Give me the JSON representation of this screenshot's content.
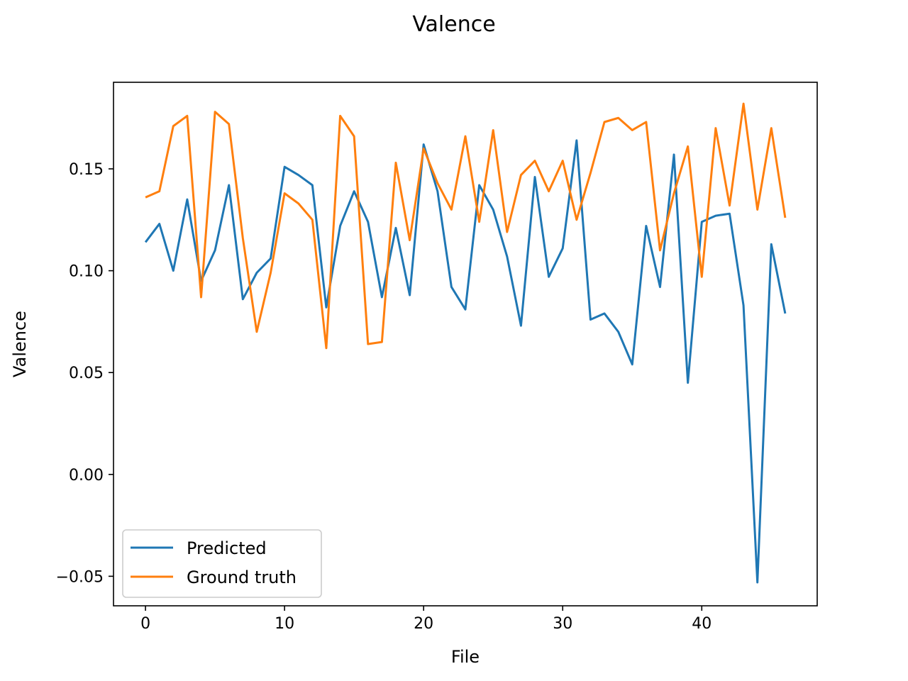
{
  "chart_data": {
    "type": "line",
    "title": "Valence",
    "xlabel": "File",
    "ylabel": "Valence",
    "xlim": [
      -2.3,
      48.3
    ],
    "ylim": [
      -0.0645,
      0.1925
    ],
    "xticks": [
      0,
      10,
      20,
      30,
      40
    ],
    "xtick_labels": [
      "0",
      "10",
      "20",
      "30",
      "40"
    ],
    "yticks": [
      -0.05,
      0.0,
      0.05,
      0.1,
      0.15
    ],
    "ytick_labels": [
      "−0.05",
      "0.00",
      "0.05",
      "0.10",
      "0.15"
    ],
    "grid": false,
    "legend_position": "lower-left",
    "x": [
      0,
      1,
      2,
      3,
      4,
      5,
      6,
      7,
      8,
      9,
      10,
      11,
      12,
      13,
      14,
      15,
      16,
      17,
      18,
      19,
      20,
      21,
      22,
      23,
      24,
      25,
      26,
      27,
      28,
      29,
      30,
      31,
      32,
      33,
      34,
      35,
      36,
      37,
      38,
      39,
      40,
      41,
      42,
      43,
      44,
      45,
      46
    ],
    "series": [
      {
        "name": "Predicted",
        "color": "#1f77b4",
        "values": [
          0.114,
          0.123,
          0.1,
          0.135,
          0.095,
          0.11,
          0.142,
          0.086,
          0.099,
          0.106,
          0.151,
          0.147,
          0.142,
          0.082,
          0.122,
          0.139,
          0.124,
          0.087,
          0.121,
          0.088,
          0.162,
          0.139,
          0.092,
          0.081,
          0.142,
          0.13,
          0.107,
          0.073,
          0.146,
          0.097,
          0.111,
          0.164,
          0.076,
          0.079,
          0.07,
          0.054,
          0.122,
          0.092,
          0.157,
          0.045,
          0.124,
          0.127,
          0.128,
          0.083,
          -0.053,
          0.113,
          0.079
        ]
      },
      {
        "name": "Ground truth",
        "color": "#ff7f0e",
        "values": [
          0.136,
          0.139,
          0.171,
          0.176,
          0.087,
          0.178,
          0.172,
          0.116,
          0.07,
          0.099,
          0.138,
          0.133,
          0.125,
          0.062,
          0.176,
          0.166,
          0.064,
          0.065,
          0.153,
          0.115,
          0.16,
          0.143,
          0.13,
          0.166,
          0.124,
          0.169,
          0.119,
          0.147,
          0.154,
          0.139,
          0.154,
          0.125,
          0.148,
          0.173,
          0.175,
          0.169,
          0.173,
          0.11,
          0.138,
          0.161,
          0.097,
          0.17,
          0.132,
          0.182,
          0.13,
          0.17,
          0.126
        ]
      }
    ]
  }
}
